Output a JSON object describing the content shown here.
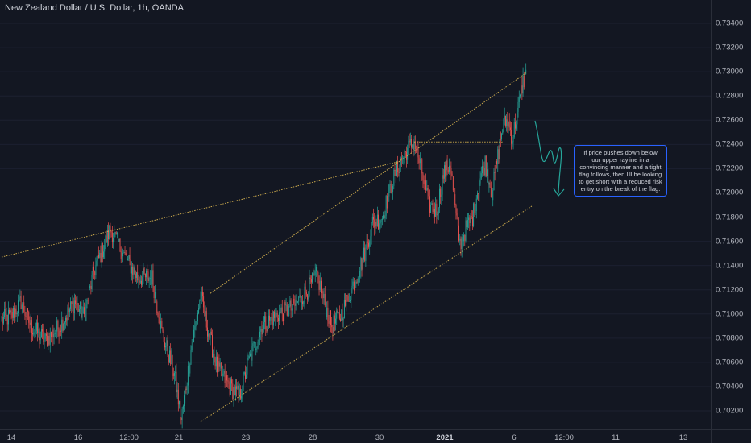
{
  "chart_data": {
    "type": "candlestick",
    "title": "New Zealand Dollar / U.S. Dollar, 1h, OANDA",
    "y_axis": {
      "side": "right",
      "range": [
        0.701,
        0.735
      ],
      "tick_labels": [
        "0.73400",
        "0.73200",
        "0.73000",
        "0.72800",
        "0.72600",
        "0.72400",
        "0.72200",
        "0.72000",
        "0.71800",
        "0.71600",
        "0.71400",
        "0.71200",
        "0.71000",
        "0.70800",
        "0.70600",
        "0.70400",
        "0.70200"
      ]
    },
    "x_axis": {
      "tick_labels": [
        {
          "text": "14",
          "bold": false
        },
        {
          "text": "16",
          "bold": false
        },
        {
          "text": "12:00",
          "bold": false
        },
        {
          "text": "21",
          "bold": false
        },
        {
          "text": "23",
          "bold": false
        },
        {
          "text": "28",
          "bold": false
        },
        {
          "text": "30",
          "bold": false
        },
        {
          "text": "2021",
          "bold": true
        },
        {
          "text": "6",
          "bold": false
        },
        {
          "text": "12:00",
          "bold": false
        },
        {
          "text": "11",
          "bold": false
        },
        {
          "text": "13",
          "bold": false
        }
      ]
    },
    "price_path": [
      {
        "i": 0,
        "p": 0.7095
      },
      {
        "i": 10,
        "p": 0.7098
      },
      {
        "i": 20,
        "p": 0.711
      },
      {
        "i": 30,
        "p": 0.709
      },
      {
        "i": 45,
        "p": 0.7078
      },
      {
        "i": 60,
        "p": 0.709
      },
      {
        "i": 75,
        "p": 0.711
      },
      {
        "i": 85,
        "p": 0.7098
      },
      {
        "i": 95,
        "p": 0.7135
      },
      {
        "i": 112,
        "p": 0.717
      },
      {
        "i": 125,
        "p": 0.715
      },
      {
        "i": 140,
        "p": 0.713
      },
      {
        "i": 155,
        "p": 0.713
      },
      {
        "i": 165,
        "p": 0.7085
      },
      {
        "i": 178,
        "p": 0.705
      },
      {
        "i": 185,
        "p": 0.7012
      },
      {
        "i": 195,
        "p": 0.707
      },
      {
        "i": 205,
        "p": 0.7115
      },
      {
        "i": 213,
        "p": 0.7085
      },
      {
        "i": 222,
        "p": 0.7055
      },
      {
        "i": 235,
        "p": 0.704
      },
      {
        "i": 245,
        "p": 0.7032
      },
      {
        "i": 255,
        "p": 0.7062
      },
      {
        "i": 268,
        "p": 0.709
      },
      {
        "i": 285,
        "p": 0.71
      },
      {
        "i": 300,
        "p": 0.7105
      },
      {
        "i": 315,
        "p": 0.712
      },
      {
        "i": 325,
        "p": 0.7132
      },
      {
        "i": 332,
        "p": 0.711
      },
      {
        "i": 340,
        "p": 0.709
      },
      {
        "i": 350,
        "p": 0.71
      },
      {
        "i": 360,
        "p": 0.712
      },
      {
        "i": 372,
        "p": 0.7145
      },
      {
        "i": 382,
        "p": 0.7175
      },
      {
        "i": 392,
        "p": 0.718
      },
      {
        "i": 402,
        "p": 0.7208
      },
      {
        "i": 410,
        "p": 0.7225
      },
      {
        "i": 418,
        "p": 0.7236
      },
      {
        "i": 425,
        "p": 0.7242
      },
      {
        "i": 432,
        "p": 0.722
      },
      {
        "i": 440,
        "p": 0.719
      },
      {
        "i": 448,
        "p": 0.7185
      },
      {
        "i": 455,
        "p": 0.7215
      },
      {
        "i": 462,
        "p": 0.7225
      },
      {
        "i": 468,
        "p": 0.718
      },
      {
        "i": 472,
        "p": 0.7158
      },
      {
        "i": 478,
        "p": 0.717
      },
      {
        "i": 485,
        "p": 0.718
      },
      {
        "i": 492,
        "p": 0.721
      },
      {
        "i": 498,
        "p": 0.7225
      },
      {
        "i": 505,
        "p": 0.72
      },
      {
        "i": 510,
        "p": 0.7225
      },
      {
        "i": 516,
        "p": 0.7255
      },
      {
        "i": 521,
        "p": 0.726
      },
      {
        "i": 526,
        "p": 0.7245
      },
      {
        "i": 532,
        "p": 0.727
      },
      {
        "i": 537,
        "p": 0.7292
      },
      {
        "i": 540,
        "p": 0.7297
      }
    ],
    "trendlines": [
      {
        "from": {
          "i": 0,
          "p": 0.7147
        },
        "to": {
          "i": 410,
          "p": 0.7226
        }
      },
      {
        "from": {
          "i": 215,
          "p": 0.7117
        },
        "to": {
          "i": 540,
          "p": 0.7299
        }
      },
      {
        "from": {
          "i": 205,
          "p": 0.7011
        },
        "to": {
          "i": 546,
          "p": 0.7189
        }
      },
      {
        "from": {
          "i": 425,
          "p": 0.7242
        },
        "to": {
          "i": 516,
          "p": 0.7242
        }
      }
    ],
    "colors": {
      "background": "#131722",
      "bull": "#26a69a",
      "bear": "#ef5350",
      "trendline": "#c9a84c",
      "projection": "#26a69a",
      "note_border": "#2962ff",
      "axis_text": "#b2b5be"
    },
    "annotation": {
      "text": "If price pushes down below our upper rayline in a convincing manner and a tight flag follows, then I'll be looking to get short with a reduced risk entry on the break of the flag."
    }
  }
}
